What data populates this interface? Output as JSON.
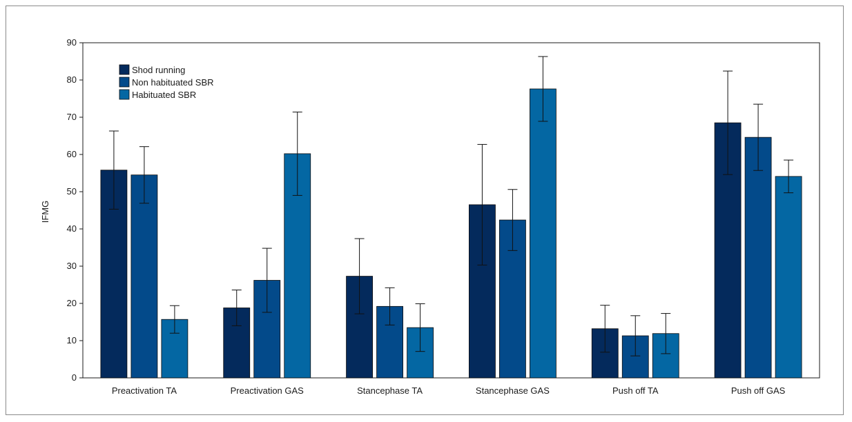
{
  "chart_data": {
    "type": "bar",
    "title": "",
    "xlabel": "",
    "ylabel": "IFMG",
    "ylim": [
      0,
      90
    ],
    "yticks": [
      0,
      10,
      20,
      30,
      40,
      50,
      60,
      70,
      80,
      90
    ],
    "grid": false,
    "legend_position": "top-left",
    "categories": [
      "Preactivation TA",
      "Preactivation GAS",
      "Stancephase TA",
      "Stancephase GAS",
      "Push off TA",
      "Push off GAS"
    ],
    "series": [
      {
        "name": "Shod running",
        "color": "#042a5c",
        "values": [
          55.8,
          18.8,
          27.3,
          46.5,
          13.2,
          68.5
        ],
        "error": [
          10.5,
          4.8,
          10.1,
          16.2,
          6.3,
          13.9
        ]
      },
      {
        "name": "Non habituated SBR",
        "color": "#034a8a",
        "values": [
          54.5,
          26.2,
          19.2,
          42.4,
          11.3,
          64.6
        ],
        "error": [
          7.6,
          8.6,
          5.0,
          8.2,
          5.4,
          8.9
        ]
      },
      {
        "name": "Habituated SBR",
        "color": "#0467a3",
        "values": [
          15.7,
          60.2,
          13.5,
          77.6,
          11.9,
          54.1
        ],
        "error": [
          3.7,
          11.2,
          6.4,
          8.7,
          5.4,
          4.4
        ]
      }
    ]
  }
}
